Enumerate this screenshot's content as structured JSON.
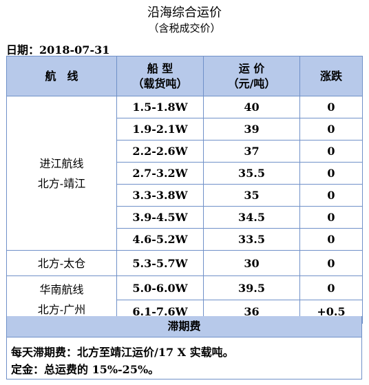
{
  "title": "沿海综合运价",
  "subtitle": "（含税成交价）",
  "date_label": "日期：2018-07-31",
  "headers": {
    "route": "航　线",
    "ship_line1": "船 型",
    "ship_line2": "（载货吨）",
    "price_line1": "运 价",
    "price_line2": "（元/吨）",
    "change": "涨跌"
  },
  "groups": [
    {
      "route_line1": "进江航线",
      "route_line2": "北方-靖江",
      "rows": [
        {
          "ship": "1.5-1.8W",
          "price": "40",
          "change": "0"
        },
        {
          "ship": "1.9-2.1W",
          "price": "39",
          "change": "0"
        },
        {
          "ship": "2.2-2.6W",
          "price": "37",
          "change": "0"
        },
        {
          "ship": "2.7-3.2W",
          "price": "35.5",
          "change": "0"
        },
        {
          "ship": "3.3-3.8W",
          "price": "35",
          "change": "0"
        },
        {
          "ship": "3.9-4.5W",
          "price": "34.5",
          "change": "0"
        },
        {
          "ship": "4.6-5.2W",
          "price": "33.5",
          "change": "0"
        }
      ]
    },
    {
      "route_line1": "北方-太仓",
      "route_line2": "",
      "rows": [
        {
          "ship": "5.3-5.7W",
          "price": "30",
          "change": "0"
        }
      ]
    },
    {
      "route_line1": "华南航线",
      "route_line2": "北方-广州",
      "rows": [
        {
          "ship": "5.0-6.0W",
          "price": "39.5",
          "change": "0"
        },
        {
          "ship": "6.1-7.6W",
          "price": "36",
          "change": "+0.5"
        }
      ]
    }
  ],
  "demurrage_title": "滞期费",
  "notes": [
    "每天滞期费：北方至靖江运价/17 X 实载吨。",
    "定金：总运费的 15%-25%。"
  ],
  "colors": {
    "header_bg": "#b7c9ea",
    "border": "#6f90c8"
  }
}
